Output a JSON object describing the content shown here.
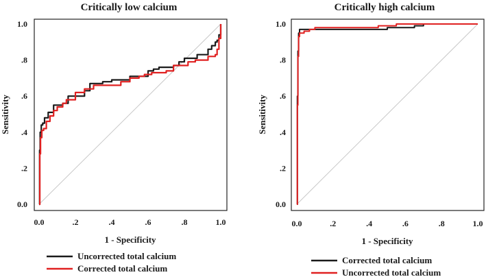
{
  "chart_data": [
    {
      "type": "line",
      "title": "Critically low calcium",
      "xlabel": "1 - Specificity",
      "ylabel": "Sensitivity",
      "xlim": [
        0,
        1
      ],
      "ylim": [
        0,
        1
      ],
      "xticks": [
        "0.0",
        ".2",
        ".4",
        ".6",
        ".8",
        "1.0"
      ],
      "yticks": [
        "0.0",
        ".2",
        ".4",
        ".6",
        ".8",
        "1.0"
      ],
      "reference_line": {
        "x": [
          0,
          1
        ],
        "y": [
          0,
          1
        ],
        "color": "#c8c8c8"
      },
      "series": [
        {
          "name": "Uncorrected total calcium",
          "color": "#1a1a1a",
          "x": [
            0.0,
            0.003,
            0.006,
            0.012,
            0.02,
            0.03,
            0.05,
            0.06,
            0.08,
            0.1,
            0.13,
            0.16,
            0.2,
            0.25,
            0.28,
            0.32,
            0.35,
            0.4,
            0.45,
            0.5,
            0.55,
            0.6,
            0.63,
            0.66,
            0.7,
            0.74,
            0.77,
            0.8,
            0.84,
            0.87,
            0.9,
            0.93,
            0.95,
            0.97,
            0.98,
            0.99,
            1.0
          ],
          "y": [
            0.0,
            0.3,
            0.4,
            0.44,
            0.45,
            0.48,
            0.51,
            0.51,
            0.55,
            0.55,
            0.56,
            0.6,
            0.6,
            0.63,
            0.67,
            0.67,
            0.68,
            0.69,
            0.69,
            0.71,
            0.71,
            0.74,
            0.75,
            0.76,
            0.76,
            0.77,
            0.79,
            0.81,
            0.81,
            0.83,
            0.83,
            0.86,
            0.88,
            0.9,
            0.91,
            0.94,
            1.0
          ]
        },
        {
          "name": "Corrected total calcium",
          "color": "#e02020",
          "x": [
            0.0,
            0.004,
            0.008,
            0.015,
            0.025,
            0.04,
            0.06,
            0.08,
            0.1,
            0.13,
            0.15,
            0.18,
            0.2,
            0.25,
            0.3,
            0.35,
            0.4,
            0.45,
            0.5,
            0.55,
            0.58,
            0.62,
            0.65,
            0.7,
            0.74,
            0.78,
            0.82,
            0.86,
            0.9,
            0.93,
            0.95,
            0.97,
            0.98,
            0.99,
            1.0
          ],
          "y": [
            0.0,
            0.28,
            0.37,
            0.41,
            0.42,
            0.46,
            0.49,
            0.52,
            0.54,
            0.56,
            0.58,
            0.58,
            0.62,
            0.64,
            0.66,
            0.66,
            0.66,
            0.68,
            0.7,
            0.71,
            0.72,
            0.73,
            0.73,
            0.74,
            0.77,
            0.77,
            0.79,
            0.8,
            0.8,
            0.82,
            0.82,
            0.83,
            0.86,
            0.92,
            1.0
          ]
        }
      ]
    },
    {
      "type": "line",
      "title": "Critically high calcium",
      "xlabel": "1 - Specificity",
      "ylabel": "Sensitivity",
      "xlim": [
        0,
        1
      ],
      "ylim": [
        0,
        1
      ],
      "xticks": [
        "0.0",
        ".2",
        ".4",
        ".6",
        ".8",
        "1.0"
      ],
      "yticks": [
        "0.0",
        ".2",
        ".4",
        ".6",
        ".8",
        "1.0"
      ],
      "reference_line": {
        "x": [
          0,
          1
        ],
        "y": [
          0,
          1
        ],
        "color": "#c8c8c8"
      },
      "series": [
        {
          "name": "Corrected total calcium",
          "color": "#1a1a1a",
          "x": [
            0.0,
            0.003,
            0.006,
            0.01,
            0.015,
            0.02,
            0.05,
            0.1,
            0.2,
            0.3,
            0.4,
            0.5,
            0.6,
            0.65,
            0.7,
            1.0
          ],
          "y": [
            0.0,
            0.6,
            0.85,
            0.95,
            0.97,
            0.97,
            0.97,
            0.97,
            0.97,
            0.97,
            0.97,
            0.98,
            0.98,
            0.99,
            1.0,
            1.0
          ],
          "draw_width": 2.0
        },
        {
          "name": "Uncorrected total calcium",
          "color": "#e02020",
          "x": [
            0.0,
            0.003,
            0.006,
            0.01,
            0.015,
            0.025,
            0.04,
            0.07,
            0.1,
            0.2,
            0.3,
            0.4,
            0.45,
            0.5,
            0.55,
            1.0
          ],
          "y": [
            0.0,
            0.55,
            0.82,
            0.93,
            0.95,
            0.95,
            0.96,
            0.97,
            0.98,
            0.98,
            0.98,
            0.98,
            0.99,
            0.99,
            1.0,
            1.0
          ],
          "draw_width": 2.0
        }
      ]
    }
  ]
}
